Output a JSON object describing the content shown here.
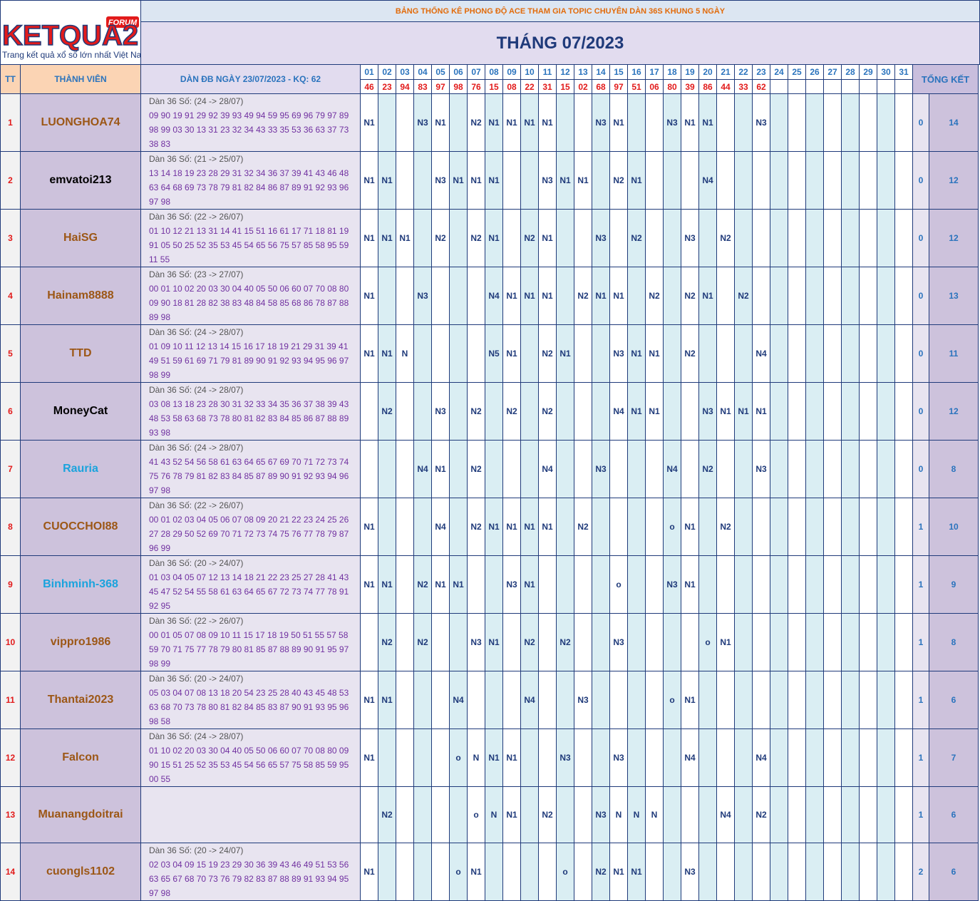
{
  "logo": {
    "brand": "KETQUA2",
    "badge": "FORUM",
    "tagline": "Trang kết quả xổ số lớn nhất Việt Nam"
  },
  "banner": "BẢNG THỐNG KÊ PHONG ĐỘ ACE THAM GIA TOPIC CHUYÊN DÀN 36S KHUNG 5 NGÀY",
  "month_title": "THÁNG 07/2023",
  "headers": {
    "tt": "TT",
    "member": "THÀNH VIÊN",
    "dan": "DÀN ĐB NGÀY 23/07/2023 - KQ: 62",
    "summary": "TỔNG KẾT"
  },
  "days": [
    "01",
    "02",
    "03",
    "04",
    "05",
    "06",
    "07",
    "08",
    "09",
    "10",
    "11",
    "12",
    "13",
    "14",
    "15",
    "16",
    "17",
    "18",
    "19",
    "20",
    "21",
    "22",
    "23",
    "24",
    "25",
    "26",
    "27",
    "28",
    "29",
    "30",
    "31"
  ],
  "results": [
    "46",
    "23",
    "94",
    "83",
    "97",
    "98",
    "76",
    "15",
    "08",
    "22",
    "31",
    "15",
    "02",
    "68",
    "97",
    "51",
    "06",
    "80",
    "39",
    "86",
    "44",
    "33",
    "62",
    "",
    "",
    "",
    "",
    "",
    "",
    "",
    ""
  ],
  "rows": [
    {
      "tt": "1",
      "name": "LUONGHOA74",
      "color": "#9c5716",
      "dan_head": "Dàn 36 Số: (24 -> 28/07)",
      "dan_lines": [
        "09 90 19 91 29 92 39 93 49 94 59 95 69 96 79 97 89",
        "98 99 03 30 13 31 23 32 34 43 33 35 53 36 63 37 73",
        "38 83"
      ],
      "marks": [
        "N1",
        "",
        "",
        "N3",
        "N1",
        "",
        "N2",
        "N1",
        "N1",
        "N1",
        "N1",
        "",
        "",
        "N3",
        "N1",
        "",
        "",
        "N3",
        "N1",
        "N1",
        "",
        "",
        "N3",
        "",
        "",
        "",
        "",
        "",
        "",
        "",
        ""
      ],
      "s1": "0",
      "s2": "14"
    },
    {
      "tt": "2",
      "name": "emvatoi213",
      "color": "#000000",
      "dan_head": "Dàn 36 Số: (21 -> 25/07)",
      "dan_lines": [
        "13 14 18 19 23 28 29 31 32 34 36 37 39 41 43 46 48",
        "63 64 68 69 73 78 79 81 82 84 86 87 89 91 92 93 96",
        "97 98"
      ],
      "marks": [
        "N1",
        "N1",
        "",
        "",
        "N3",
        "N1",
        "N1",
        "N1",
        "",
        "",
        "N3",
        "N1",
        "N1",
        "",
        "N2",
        "N1",
        "",
        "",
        "",
        "N4",
        "",
        "",
        "",
        "",
        "",
        "",
        "",
        "",
        "",
        "",
        ""
      ],
      "s1": "0",
      "s2": "12"
    },
    {
      "tt": "3",
      "name": "HaiSG",
      "color": "#9c5716",
      "dan_head": "Dàn 36 Số: (22 -> 26/07)",
      "dan_lines": [
        "01 10 12 21 13 31 14 41 15 51 16 61 17 71 18 81 19",
        "91 05 50 25 52 35 53 45 54 65 56 75 57 85 58 95 59",
        "11 55"
      ],
      "marks": [
        "N1",
        "N1",
        "N1",
        "",
        "N2",
        "",
        "N2",
        "N1",
        "",
        "N2",
        "N1",
        "",
        "",
        "N3",
        "",
        "N2",
        "",
        "",
        "N3",
        "",
        "N2",
        "",
        "",
        "",
        "",
        "",
        "",
        "",
        "",
        "",
        ""
      ],
      "s1": "0",
      "s2": "12"
    },
    {
      "tt": "4",
      "name": "Hainam8888",
      "color": "#9c5716",
      "dan_head": "Dàn 36 Số: (23 -> 27/07)",
      "dan_lines": [
        "00 01 10 02 20 03 30 04 40 05 50 06 60 07 70 08 80",
        "09 90 18 81 28 82 38 83 48 84 58 85 68 86 78 87 88",
        "89 98"
      ],
      "marks": [
        "N1",
        "",
        "",
        "N3",
        "",
        "",
        "",
        "N4",
        "N1",
        "N1",
        "N1",
        "",
        "N2",
        "N1",
        "N1",
        "",
        "N2",
        "",
        "N2",
        "N1",
        "",
        "N2",
        "",
        "",
        "",
        "",
        "",
        "",
        "",
        "",
        ""
      ],
      "s1": "0",
      "s2": "13"
    },
    {
      "tt": "5",
      "name": "TTD",
      "color": "#9c5716",
      "dan_head": "Dàn 36 Số: (24 -> 28/07)",
      "dan_lines": [
        "01 09 10 11 12 13 14 15 16 17 18 19 21 29 31 39 41",
        "49 51 59 61 69 71 79 81 89 90 91 92 93 94 95 96 97",
        "98 99"
      ],
      "marks": [
        "N1",
        "N1",
        "N",
        "",
        "",
        "",
        "",
        "N5",
        "N1",
        "",
        "N2",
        "N1",
        "",
        "",
        "N3",
        "N1",
        "N1",
        "",
        "N2",
        "",
        "",
        "",
        "N4",
        "",
        "",
        "",
        "",
        "",
        "",
        "",
        ""
      ],
      "s1": "0",
      "s2": "11"
    },
    {
      "tt": "6",
      "name": "MoneyCat",
      "color": "#000000",
      "dan_head": "Dàn 36 Số: (24 -> 28/07)",
      "dan_lines": [
        "03 08 13 18 23 28 30 31 32 33 34 35 36 37 38 39 43",
        "48 53 58 63 68 73 78 80 81 82 83 84 85 86 87 88 89",
        "93 98"
      ],
      "marks": [
        "",
        "N2",
        "",
        "",
        "N3",
        "",
        "N2",
        "",
        "N2",
        "",
        "N2",
        "",
        "",
        "",
        "N4",
        "N1",
        "N1",
        "",
        "",
        "N3",
        "N1",
        "N1",
        "N1",
        "",
        "",
        "",
        "",
        "",
        "",
        "",
        ""
      ],
      "s1": "0",
      "s2": "12"
    },
    {
      "tt": "7",
      "name": "Rauria",
      "color": "#1aa3dd",
      "dan_head": "Dàn 36 Số: (24 -> 28/07)",
      "dan_lines": [
        "41 43 52 54 56 58 61 63 64 65 67 69 70 71 72 73 74",
        "75 76 78 79 81 82 83 84 85 87 89 90 91 92 93 94 96",
        "97 98"
      ],
      "marks": [
        "",
        "",
        "",
        "N4",
        "N1",
        "",
        "N2",
        "",
        "",
        "",
        "N4",
        "",
        "",
        "N3",
        "",
        "",
        "",
        "N4",
        "",
        "N2",
        "",
        "",
        "N3",
        "",
        "",
        "",
        "",
        "",
        "",
        "",
        ""
      ],
      "s1": "0",
      "s2": "8"
    },
    {
      "tt": "8",
      "name": "CUOCCHOI88",
      "color": "#9c5716",
      "dan_head": "Dàn 36 Số: (22 -> 26/07)",
      "dan_lines": [
        "00 01 02 03 04 05 06 07 08 09 20 21 22 23 24 25 26",
        "27 28 29 50 52 69 70 71 72 73 74 75 76 77 78 79 87",
        "96 99"
      ],
      "marks": [
        "N1",
        "",
        "",
        "",
        "N4",
        "",
        "N2",
        "N1",
        "N1",
        "N1",
        "N1",
        "",
        "N2",
        "",
        "",
        "",
        "",
        "o",
        "N1",
        "",
        "N2",
        "",
        "",
        "",
        "",
        "",
        "",
        "",
        "",
        "",
        ""
      ],
      "s1": "1",
      "s2": "10"
    },
    {
      "tt": "9",
      "name": "Binhminh-368",
      "color": "#1aa3dd",
      "dan_head": "Dàn 36 Số: (20 -> 24/07)",
      "dan_lines": [
        "01 03 04 05 07 12 13 14 18 21 22 23 25 27 28 41 43",
        "45 47 52 54 55 58 61 63 64 65 67 72 73 74 77 78 91",
        "92 95"
      ],
      "marks": [
        "N1",
        "N1",
        "",
        "N2",
        "N1",
        "N1",
        "",
        "",
        "N3",
        "N1",
        "",
        "",
        "",
        "",
        "o",
        "",
        "",
        "N3",
        "N1",
        "",
        "",
        "",
        "",
        "",
        "",
        "",
        "",
        "",
        "",
        "",
        ""
      ],
      "s1": "1",
      "s2": "9"
    },
    {
      "tt": "10",
      "name": "vippro1986",
      "color": "#9c5716",
      "dan_head": "Dàn 36 Số: (22 -> 26/07)",
      "dan_lines": [
        "00 01 05 07 08 09 10 11 15 17 18 19 50 51 55 57 58",
        "59 70 71 75 77 78 79 80 81 85 87 88 89 90 91 95 97",
        "98 99"
      ],
      "marks": [
        "",
        "N2",
        "",
        "N2",
        "",
        "",
        "N3",
        "N1",
        "",
        "N2",
        "",
        "N2",
        "",
        "",
        "N3",
        "",
        "",
        "",
        "",
        "o",
        "N1",
        "",
        "",
        "",
        "",
        "",
        "",
        "",
        "",
        "",
        ""
      ],
      "s1": "1",
      "s2": "8"
    },
    {
      "tt": "11",
      "name": "Thantai2023",
      "color": "#9c5716",
      "dan_head": "Dàn 36 Số: (20 -> 24/07)",
      "dan_lines": [
        "05 03 04 07 08 13 18 20 54 23 25 28 40 43 45 48 53",
        "63 68 70 73 78 80 81 82 84 85 83 87 90 91 93 95 96",
        "98 58"
      ],
      "marks": [
        "N1",
        "N1",
        "",
        "",
        "",
        "N4",
        "",
        "",
        "",
        "N4",
        "",
        "",
        "N3",
        "",
        "",
        "",
        "",
        "o",
        "N1",
        "",
        "",
        "",
        "",
        "",
        "",
        "",
        "",
        "",
        "",
        "",
        ""
      ],
      "s1": "1",
      "s2": "6"
    },
    {
      "tt": "12",
      "name": "Falcon",
      "color": "#9c5716",
      "dan_head": "Dàn 36 Số: (24 -> 28/07)",
      "dan_lines": [
        "01 10 02 20 03 30 04 40 05 50 06 60 07 70 08 80 09",
        "90 15 51 25 52 35 53 45 54 56 65 57 75 58 85 59 95",
        "00 55"
      ],
      "marks": [
        "N1",
        "",
        "",
        "",
        "",
        "o",
        "N",
        "N1",
        "N1",
        "",
        "",
        "N3",
        "",
        "",
        "N3",
        "",
        "",
        "",
        "N4",
        "",
        "",
        "",
        "N4",
        "",
        "",
        "",
        "",
        "",
        "",
        "",
        ""
      ],
      "s1": "1",
      "s2": "7"
    },
    {
      "tt": "13",
      "name": "Muanangdoitrai",
      "color": "#9c5716",
      "dan_head": "",
      "dan_lines": [
        "",
        "",
        ""
      ],
      "marks": [
        "",
        "N2",
        "",
        "",
        "",
        "",
        "o",
        "N",
        "N1",
        "",
        "N2",
        "",
        "",
        "N3",
        "N",
        "N",
        "N",
        "",
        "",
        "",
        "N4",
        "",
        "N2",
        "",
        "",
        "",
        "",
        "",
        "",
        "",
        ""
      ],
      "s1": "1",
      "s2": "6"
    },
    {
      "tt": "14",
      "name": "cuongls1102",
      "color": "#9c5716",
      "dan_head": "Dàn 36 Số: (20 -> 24/07)",
      "dan_lines": [
        "02 03 04 09 15 19 23 29 30 36 39 43 46 49 51 53 56",
        "63 65 67 68 70 73 76 79 82 83 87 88 89 91 93 94 95",
        "97 98"
      ],
      "marks": [
        "N1",
        "",
        "",
        "",
        "",
        "o",
        "N1",
        "",
        "",
        "",
        "",
        "o",
        "",
        "N2",
        "N1",
        "N1",
        "",
        "",
        "N3",
        "",
        "",
        "",
        "",
        "",
        "",
        "",
        "",
        "",
        "",
        "",
        ""
      ],
      "s1": "2",
      "s2": "6"
    }
  ]
}
